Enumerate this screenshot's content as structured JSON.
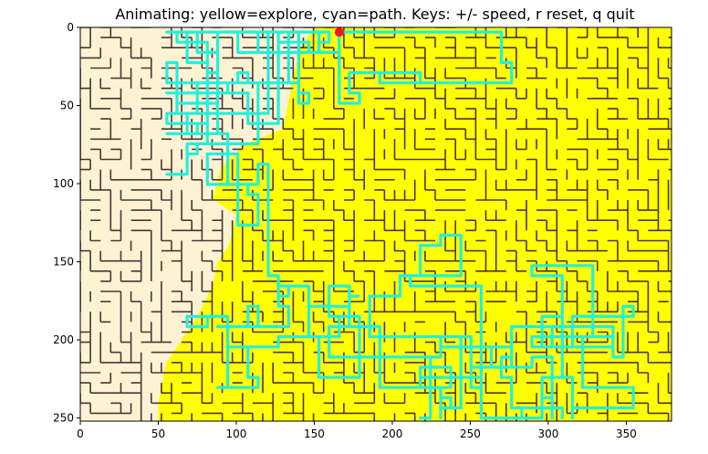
{
  "window": {
    "title": "Animating: yellow=explore, cyan=path. Keys: +/- speed, r reset, q quit"
  },
  "axes": {
    "x_ticks": [
      "0",
      "50",
      "100",
      "150",
      "200",
      "250",
      "300",
      "350"
    ],
    "y_ticks": [
      "0",
      "50",
      "100",
      "150",
      "200",
      "250"
    ],
    "xlim": [
      0,
      379
    ],
    "ylim": [
      252,
      0
    ]
  },
  "colors": {
    "wall": "#3a1f26",
    "open": "#fdf3d2",
    "explored": "#ffff00",
    "path": "#22f0dc",
    "start_marker": "#ff1010"
  },
  "maze": {
    "start_marker_icon": "red-dot-icon",
    "start_marker_at": [
      166,
      3
    ]
  }
}
